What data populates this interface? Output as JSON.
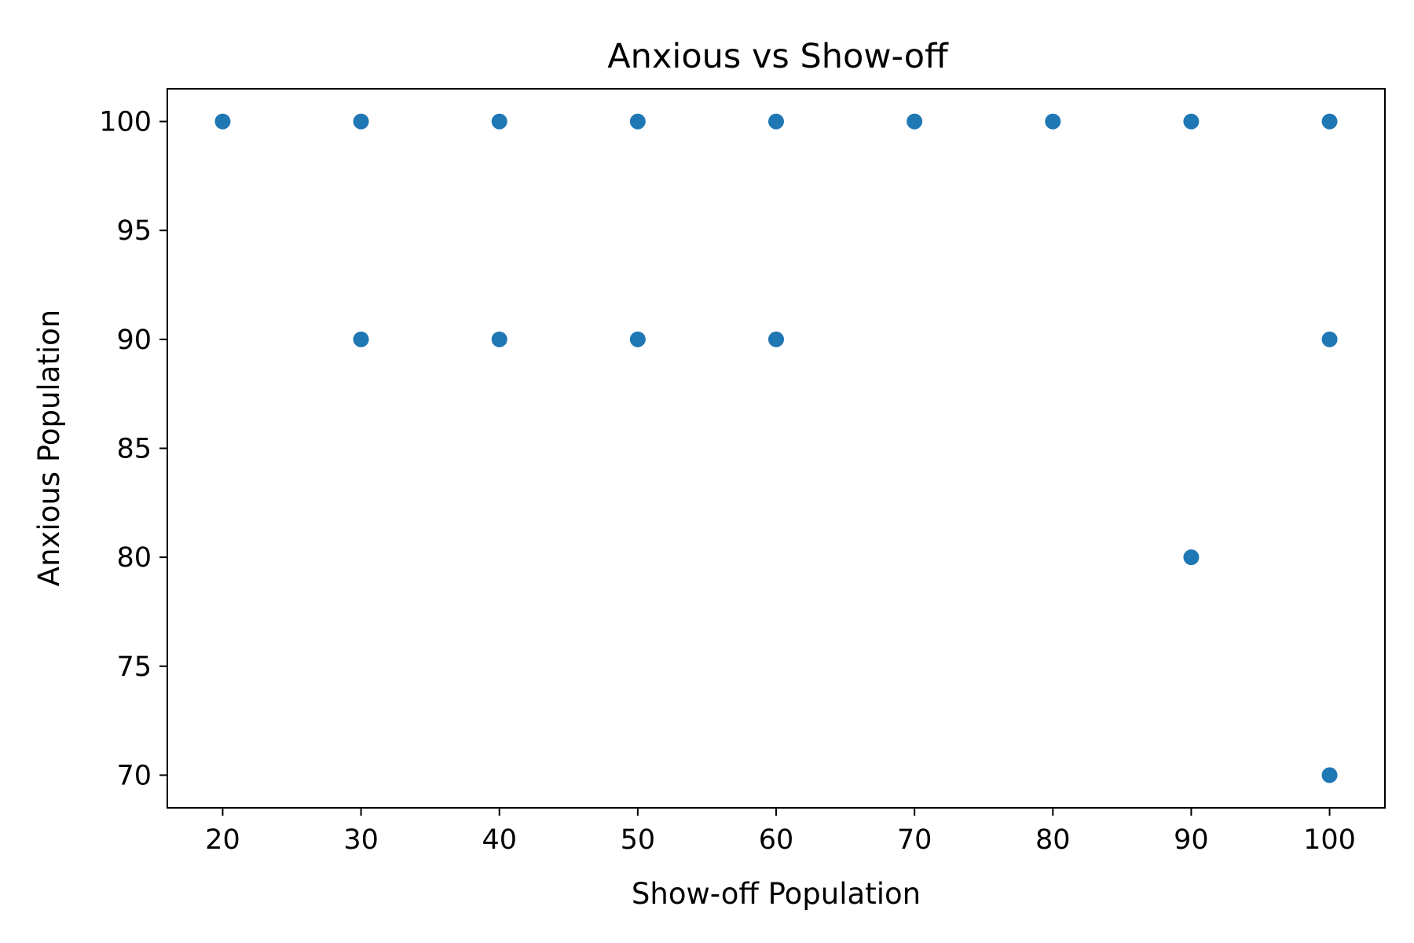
{
  "chart_data": {
    "type": "scatter",
    "title": "Anxious vs Show-off",
    "xlabel": "Show-off Population",
    "ylabel": "Anxious Population",
    "xlim": [
      16,
      104
    ],
    "ylim": [
      68.5,
      101.5
    ],
    "xticks": [
      20,
      30,
      40,
      50,
      60,
      70,
      80,
      90,
      100
    ],
    "yticks": [
      70,
      75,
      80,
      85,
      90,
      95,
      100
    ],
    "grid": false,
    "legend": "none",
    "marker_color": "#1f77b4",
    "series": [
      {
        "points": [
          {
            "x": 20,
            "y": 100
          },
          {
            "x": 30,
            "y": 100
          },
          {
            "x": 40,
            "y": 100
          },
          {
            "x": 50,
            "y": 100
          },
          {
            "x": 60,
            "y": 100
          },
          {
            "x": 70,
            "y": 100
          },
          {
            "x": 80,
            "y": 100
          },
          {
            "x": 90,
            "y": 100
          },
          {
            "x": 100,
            "y": 100
          },
          {
            "x": 30,
            "y": 90
          },
          {
            "x": 40,
            "y": 90
          },
          {
            "x": 50,
            "y": 90
          },
          {
            "x": 60,
            "y": 90
          },
          {
            "x": 100,
            "y": 90
          },
          {
            "x": 90,
            "y": 80
          },
          {
            "x": 100,
            "y": 70
          }
        ]
      }
    ]
  }
}
